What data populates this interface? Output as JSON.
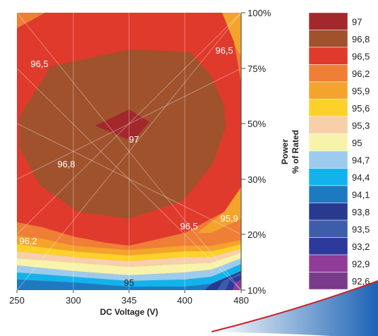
{
  "chart_data": {
    "type": "heatmap",
    "title": "",
    "xlabel": "DC Voltage (V)",
    "ylabel": "Power\n% of Rated",
    "x_ticks": [
      "250",
      "300",
      "345",
      "400",
      "480"
    ],
    "y_ticks": [
      "10%",
      "20%",
      "30%",
      "50%",
      "75%",
      "100%"
    ],
    "grid": true,
    "legend_position": "right",
    "legend": [
      {
        "label": "97",
        "color": "#a3282c"
      },
      {
        "label": "96,8",
        "color": "#a0522d"
      },
      {
        "label": "96,5",
        "color": "#e03a2c"
      },
      {
        "label": "96,2",
        "color": "#ef7e36"
      },
      {
        "label": "95,9",
        "color": "#f4a32c"
      },
      {
        "label": "95,6",
        "color": "#fcd12a"
      },
      {
        "label": "95,3",
        "color": "#f7cfa8"
      },
      {
        "label": "95",
        "color": "#f8f3aa"
      },
      {
        "label": "94,7",
        "color": "#9ccbee"
      },
      {
        "label": "94,4",
        "color": "#12b3ec"
      },
      {
        "label": "94,1",
        "color": "#1e7ac0"
      },
      {
        "label": "93,8",
        "color": "#283990"
      },
      {
        "label": "93,5",
        "color": "#3d5cab"
      },
      {
        "label": "93,2",
        "color": "#2c3a9c"
      },
      {
        "label": "92,9",
        "color": "#903c98"
      },
      {
        "label": "92,6",
        "color": "#7a3b8c"
      }
    ],
    "contour_labels": [
      "97",
      "96,8",
      "96,5",
      "96,5",
      "96,5",
      "96,2",
      "95,9",
      "95"
    ]
  }
}
